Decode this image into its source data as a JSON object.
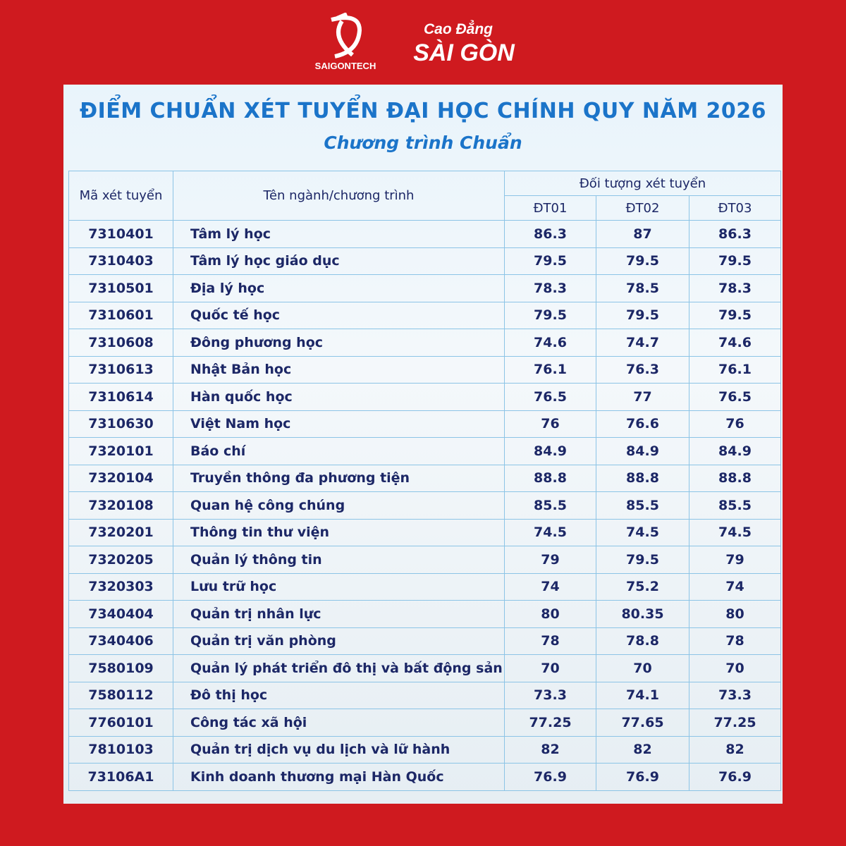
{
  "logo": {
    "brand": "SAIGONTECH",
    "line1": "Cao Đẳng",
    "line2": "SÀI GÒN"
  },
  "header": {
    "title": "ĐIỂM CHUẨN XÉT TUYỂN ĐẠI HỌC CHÍNH QUY NĂM 2026",
    "subtitle": "Chương trình Chuẩn"
  },
  "table": {
    "columns": {
      "code": "Mã xét tuyển",
      "name": "Tên ngành/chương trình",
      "group": "Đối tượng xét tuyển",
      "groups": [
        "ĐT01",
        "ĐT02",
        "ĐT03"
      ]
    },
    "rows": [
      [
        "7310401",
        "Tâm lý học",
        "86.3",
        "87",
        "86.3"
      ],
      [
        "7310403",
        "Tâm lý học giáo dục",
        "79.5",
        "79.5",
        "79.5"
      ],
      [
        "7310501",
        "Địa lý học",
        "78.3",
        "78.5",
        "78.3"
      ],
      [
        "7310601",
        "Quốc tế học",
        "79.5",
        "79.5",
        "79.5"
      ],
      [
        "7310608",
        "Đông phương học",
        "74.6",
        "74.7",
        "74.6"
      ],
      [
        "7310613",
        "Nhật Bản học",
        "76.1",
        "76.3",
        "76.1"
      ],
      [
        "7310614",
        "Hàn quốc học",
        "76.5",
        "77",
        "76.5"
      ],
      [
        "7310630",
        "Việt Nam học",
        "76",
        "76.6",
        "76"
      ],
      [
        "7320101",
        "Báo chí",
        "84.9",
        "84.9",
        "84.9"
      ],
      [
        "7320104",
        "Truyền thông đa phương tiện",
        "88.8",
        "88.8",
        "88.8"
      ],
      [
        "7320108",
        "Quan hệ công chúng",
        "85.5",
        "85.5",
        "85.5"
      ],
      [
        "7320201",
        "Thông tin thư viện",
        "74.5",
        "74.5",
        "74.5"
      ],
      [
        "7320205",
        "Quản lý thông tin",
        "79",
        "79.5",
        "79"
      ],
      [
        "7320303",
        "Lưu trữ học",
        "74",
        "75.2",
        "74"
      ],
      [
        "7340404",
        "Quản trị nhân lực",
        "80",
        "80.35",
        "80"
      ],
      [
        "7340406",
        "Quản trị văn phòng",
        "78",
        "78.8",
        "78"
      ],
      [
        "7580109",
        "Quản lý phát triển đô thị và bất động sản",
        "70",
        "70",
        "70"
      ],
      [
        "7580112",
        "Đô thị học",
        "73.3",
        "74.1",
        "73.3"
      ],
      [
        "7760101",
        "Công tác xã hội",
        "77.25",
        "77.65",
        "77.25"
      ],
      [
        "7810103",
        "Quản trị dịch vụ du lịch và lữ hành",
        "82",
        "82",
        "82"
      ],
      [
        "73106A1",
        "Kinh doanh thương mại Hàn Quốc",
        "76.9",
        "76.9",
        "76.9"
      ]
    ]
  }
}
